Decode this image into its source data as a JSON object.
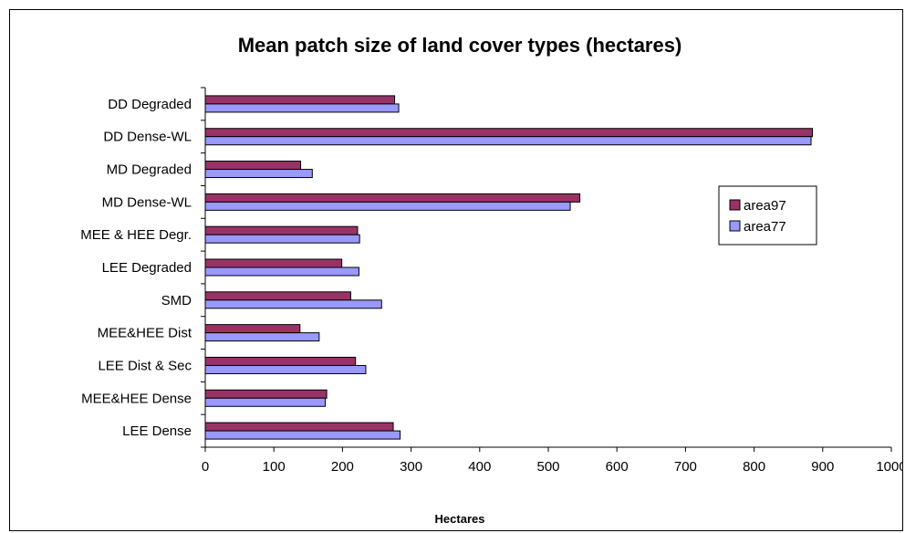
{
  "chart_data": {
    "type": "bar",
    "orientation": "horizontal",
    "title": "Mean patch size of land cover types (hectares)",
    "xlabel": "Hectares",
    "ylabel": "",
    "xlim": [
      0,
      1000
    ],
    "xticks": [
      "0",
      "100",
      "200",
      "300",
      "400",
      "500",
      "600",
      "700",
      "800",
      "900",
      "1000"
    ],
    "categories": [
      "DD Degraded",
      "DD Dense-WL",
      "MD Degraded",
      "MD Dense-WL",
      "MEE & HEE Degr.",
      "LEE Degraded",
      "SMD",
      "MEE&HEE Dist",
      "LEE Dist & Sec",
      "MEE&HEE Dense",
      "LEE Dense"
    ],
    "series": [
      {
        "name": "area97",
        "color": "#993366",
        "values": [
          276,
          885,
          139,
          546,
          222,
          199,
          212,
          138,
          219,
          177,
          274
        ]
      },
      {
        "name": "area77",
        "color": "#9999ff",
        "values": [
          282,
          883,
          156,
          532,
          225,
          224,
          257,
          166,
          234,
          175,
          284
        ]
      }
    ],
    "grid": false,
    "legend_position": "right"
  }
}
